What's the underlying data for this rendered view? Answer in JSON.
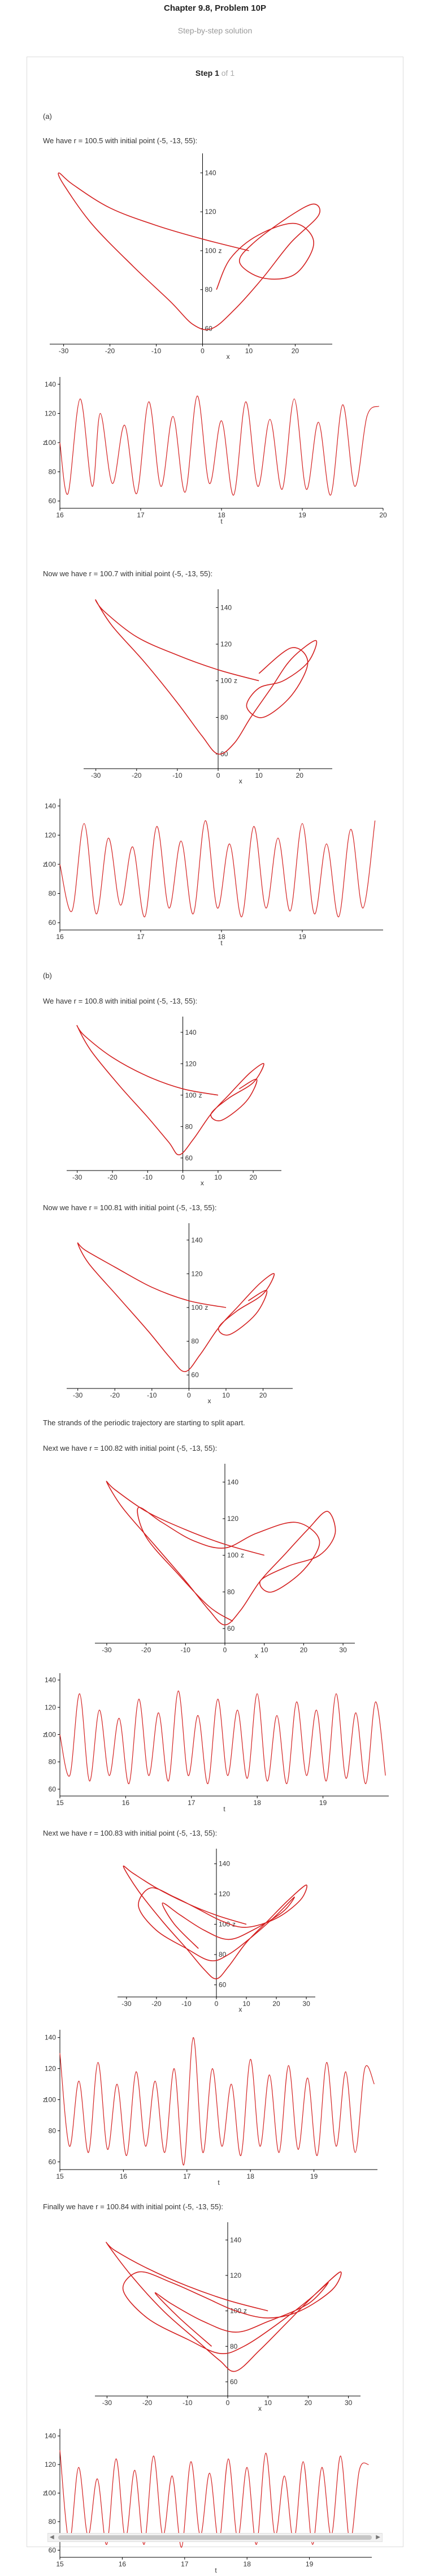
{
  "header": {
    "title": "Chapter 9.8, Problem 10P",
    "subtitle": "Step-by-step solution"
  },
  "step": {
    "label": "Step 1",
    "of": "of 1"
  },
  "paragraphs": {
    "p_a": "(a)",
    "p_1005": "We have r = 100.5 with initial point (-5, -13, 55):",
    "p_1007": "Now we have r = 100.7 with initial point (-5, -13, 55):",
    "p_b": "(b)",
    "p_1008": "We have r = 100.8 with initial point (-5, -13, 55):",
    "p_10081": "Now we have r = 100.81 with initial point (-5, -13, 55):",
    "p_split": "The strands of the periodic trajectory are starting to split apart.",
    "p_10082": "Next we have r = 100.82 with initial point (-5, -13, 55):",
    "p_10083": "Next we have r = 100.83 with initial point (-5, -13, 55):",
    "p_10084": "Finally we have r = 100.84 with initial point (-5, -13, 55):"
  },
  "colors": {
    "curve": "#d42020",
    "curve_light": "#e88080",
    "axis": "#000000"
  },
  "chart_data": [
    {
      "id": "phase_1005",
      "type": "line",
      "xlabel": "x",
      "ylabel": "z",
      "xlim": [
        -33,
        28
      ],
      "ylim": [
        52,
        150
      ],
      "xticks": [
        "-30",
        "-20",
        "-10",
        "0",
        "10",
        "20"
      ],
      "yticks": [
        "60",
        "80",
        "100",
        "120",
        "140"
      ],
      "x": [
        10,
        0,
        -10,
        -20,
        -28,
        -31,
        -30,
        -24,
        -15,
        -7,
        -2,
        2,
        7,
        13,
        19,
        25,
        24,
        19,
        11,
        8,
        13,
        20,
        24,
        20,
        12,
        6,
        3
      ],
      "y": [
        100,
        106,
        113,
        122,
        134,
        140,
        134,
        114,
        92,
        74,
        62,
        60,
        70,
        86,
        104,
        118,
        124,
        118,
        104,
        94,
        86,
        88,
        104,
        114,
        108,
        96,
        80
      ]
    },
    {
      "id": "time_1005",
      "type": "line",
      "xlabel": "t",
      "ylabel": "z",
      "xlim": [
        16,
        20
      ],
      "ylim": [
        55,
        145
      ],
      "xticks": [
        "16",
        "17",
        "18",
        "19",
        "20"
      ],
      "yticks": [
        "60",
        "80",
        "100",
        "120",
        "140"
      ],
      "x": [
        16.0,
        16.1,
        16.25,
        16.4,
        16.5,
        16.65,
        16.8,
        16.95,
        17.1,
        17.25,
        17.4,
        17.55,
        17.7,
        17.85,
        18.0,
        18.15,
        18.3,
        18.45,
        18.6,
        18.75,
        18.9,
        19.05,
        19.2,
        19.35,
        19.5,
        19.65,
        19.8,
        19.95
      ],
      "y": [
        100,
        65,
        130,
        70,
        120,
        72,
        112,
        65,
        128,
        70,
        118,
        66,
        132,
        72,
        115,
        64,
        128,
        70,
        116,
        68,
        130,
        68,
        114,
        64,
        126,
        70,
        118,
        125
      ]
    },
    {
      "id": "phase_1007",
      "type": "line",
      "xlabel": "x",
      "ylabel": "z",
      "xlim": [
        -33,
        28
      ],
      "ylim": [
        52,
        150
      ],
      "xticks": [
        "-30",
        "-20",
        "-10",
        "0",
        "10",
        "20"
      ],
      "yticks": [
        "60",
        "80",
        "100",
        "120",
        "140"
      ],
      "x": [
        10,
        0,
        -10,
        -20,
        -28,
        -30,
        -26,
        -18,
        -10,
        -4,
        0,
        4,
        8,
        13,
        18,
        24,
        22,
        16,
        10,
        7,
        11,
        18,
        22,
        18,
        10
      ],
      "y": [
        100,
        106,
        114,
        124,
        138,
        144,
        130,
        110,
        88,
        70,
        60,
        66,
        80,
        96,
        112,
        122,
        110,
        100,
        96,
        86,
        80,
        92,
        110,
        118,
        104
      ]
    },
    {
      "id": "time_1007",
      "type": "line",
      "xlabel": "t",
      "ylabel": "z",
      "xlim": [
        16,
        20
      ],
      "ylim": [
        55,
        145
      ],
      "xticks": [
        "16",
        "17",
        "18",
        "19"
      ],
      "yticks": [
        "60",
        "80",
        "100",
        "120",
        "140"
      ],
      "x": [
        16.0,
        16.15,
        16.3,
        16.45,
        16.6,
        16.75,
        16.9,
        17.05,
        17.2,
        17.35,
        17.5,
        17.65,
        17.8,
        17.95,
        18.1,
        18.25,
        18.4,
        18.55,
        18.7,
        18.85,
        19.0,
        19.15,
        19.3,
        19.45,
        19.6,
        19.75,
        19.9
      ],
      "y": [
        100,
        68,
        128,
        66,
        118,
        72,
        112,
        64,
        126,
        70,
        116,
        66,
        130,
        70,
        114,
        64,
        126,
        70,
        118,
        68,
        128,
        66,
        114,
        64,
        124,
        70,
        130
      ]
    },
    {
      "id": "phase_1008",
      "type": "line",
      "xlabel": "x",
      "ylabel": "z",
      "xlim": [
        -33,
        28
      ],
      "ylim": [
        52,
        150
      ],
      "xticks": [
        "-30",
        "-20",
        "-10",
        "0",
        "10",
        "20"
      ],
      "yticks": [
        "60",
        "80",
        "100",
        "120",
        "140"
      ],
      "x": [
        10,
        0,
        -10,
        -20,
        -28,
        -30,
        -26,
        -18,
        -10,
        -4,
        -1,
        3,
        8,
        13,
        19,
        23,
        20,
        13,
        8,
        11,
        18,
        21,
        16
      ],
      "y": [
        100,
        104,
        112,
        124,
        138,
        144,
        128,
        106,
        86,
        70,
        62,
        72,
        88,
        100,
        114,
        120,
        108,
        98,
        88,
        84,
        96,
        110,
        104
      ]
    },
    {
      "id": "phase_10081",
      "type": "line",
      "xlabel": "x",
      "ylabel": "z",
      "xlim": [
        -33,
        28
      ],
      "ylim": [
        52,
        150
      ],
      "xticks": [
        "-30",
        "-20",
        "-10",
        "0",
        "10",
        "20"
      ],
      "yticks": [
        "60",
        "80",
        "100",
        "120",
        "140"
      ],
      "x": [
        10,
        0,
        -10,
        -20,
        -28,
        -30,
        -27,
        -19,
        -11,
        -5,
        -1,
        3,
        8,
        13,
        19,
        23,
        20,
        13,
        8,
        11,
        18,
        21,
        16
      ],
      "y": [
        100,
        104,
        112,
        124,
        134,
        138,
        126,
        106,
        86,
        70,
        62,
        72,
        88,
        100,
        114,
        120,
        108,
        98,
        88,
        84,
        96,
        110,
        104
      ]
    },
    {
      "id": "phase_10082",
      "type": "line",
      "xlabel": "x",
      "ylabel": "z",
      "xlim": [
        -33,
        33
      ],
      "ylim": [
        52,
        150
      ],
      "xticks": [
        "-30",
        "-20",
        "-10",
        "0",
        "10",
        "20",
        "30"
      ],
      "yticks": [
        "60",
        "80",
        "100",
        "120",
        "140"
      ],
      "x": [
        10,
        0,
        -10,
        -20,
        -28,
        -30,
        -26,
        -18,
        -10,
        -4,
        0,
        4,
        9,
        15,
        21,
        26,
        28,
        24,
        16,
        9,
        12,
        20,
        24,
        18,
        8,
        0,
        -8,
        -16,
        -22,
        -20,
        -12,
        -4,
        2
      ],
      "y": [
        100,
        106,
        114,
        124,
        136,
        140,
        126,
        106,
        86,
        70,
        62,
        70,
        86,
        100,
        114,
        124,
        112,
        100,
        94,
        86,
        80,
        92,
        108,
        118,
        112,
        104,
        108,
        118,
        126,
        110,
        90,
        72,
        64
      ]
    },
    {
      "id": "time_10082",
      "type": "line",
      "xlabel": "t",
      "ylabel": "z",
      "xlim": [
        15,
        20
      ],
      "ylim": [
        55,
        145
      ],
      "xticks": [
        "15",
        "16",
        "17",
        "18",
        "19"
      ],
      "yticks": [
        "60",
        "80",
        "100",
        "120",
        "140"
      ],
      "x": [
        15.0,
        15.15,
        15.3,
        15.45,
        15.6,
        15.75,
        15.9,
        16.05,
        16.2,
        16.35,
        16.5,
        16.65,
        16.8,
        16.95,
        17.1,
        17.25,
        17.4,
        17.55,
        17.7,
        17.85,
        18.0,
        18.15,
        18.3,
        18.45,
        18.6,
        18.75,
        18.9,
        19.05,
        19.2,
        19.35,
        19.5,
        19.65,
        19.8,
        19.95
      ],
      "y": [
        100,
        70,
        130,
        66,
        118,
        70,
        112,
        64,
        126,
        70,
        116,
        66,
        132,
        70,
        114,
        64,
        126,
        70,
        118,
        68,
        130,
        66,
        114,
        64,
        124,
        70,
        118,
        66,
        130,
        68,
        116,
        64,
        124,
        70
      ]
    },
    {
      "id": "phase_10083",
      "type": "line",
      "xlabel": "x",
      "ylabel": "z",
      "xlim": [
        -33,
        33
      ],
      "ylim": [
        52,
        150
      ],
      "xticks": [
        "-30",
        "-20",
        "-10",
        "0",
        "10",
        "20",
        "30"
      ],
      "yticks": [
        "60",
        "80",
        "100",
        "120",
        "140"
      ],
      "x": [
        10,
        0,
        -10,
        -20,
        -28,
        -31,
        -26,
        -18,
        -10,
        -4,
        0,
        4,
        10,
        17,
        24,
        30,
        28,
        20,
        10,
        2,
        -6,
        -14,
        -22,
        -26,
        -20,
        -10,
        -2,
        4,
        12,
        20,
        26,
        22,
        12,
        4,
        -4,
        -12,
        -18,
        -14,
        -6
      ],
      "y": [
        100,
        106,
        114,
        124,
        134,
        138,
        122,
        102,
        84,
        70,
        64,
        72,
        88,
        102,
        116,
        126,
        116,
        104,
        98,
        102,
        110,
        118,
        124,
        112,
        96,
        84,
        76,
        80,
        92,
        106,
        118,
        108,
        96,
        90,
        96,
        106,
        114,
        100,
        84
      ]
    },
    {
      "id": "time_10083",
      "type": "line",
      "xlabel": "t",
      "ylabel": "z",
      "xlim": [
        15,
        20
      ],
      "ylim": [
        55,
        145
      ],
      "xticks": [
        "15",
        "16",
        "17",
        "18",
        "19"
      ],
      "yticks": [
        "60",
        "80",
        "100",
        "120",
        "140"
      ],
      "x": [
        15.0,
        15.15,
        15.3,
        15.45,
        15.6,
        15.75,
        15.9,
        16.05,
        16.2,
        16.35,
        16.5,
        16.65,
        16.8,
        16.95,
        17.1,
        17.25,
        17.4,
        17.55,
        17.7,
        17.85,
        18.0,
        18.15,
        18.3,
        18.45,
        18.6,
        18.75,
        18.9,
        19.05,
        19.2,
        19.35,
        19.5,
        19.65,
        19.8,
        19.95
      ],
      "y": [
        130,
        70,
        112,
        66,
        124,
        68,
        110,
        64,
        118,
        70,
        112,
        66,
        120,
        58,
        140,
        66,
        120,
        70,
        110,
        64,
        126,
        70,
        116,
        66,
        122,
        68,
        114,
        64,
        124,
        70,
        118,
        66,
        120,
        110
      ]
    },
    {
      "id": "phase_10084",
      "type": "line",
      "xlabel": "x",
      "ylabel": "z",
      "xlim": [
        -33,
        33
      ],
      "ylim": [
        52,
        150
      ],
      "xticks": [
        "-30",
        "-20",
        "-10",
        "0",
        "10",
        "20",
        "30"
      ],
      "yticks": [
        "60",
        "80",
        "100",
        "120",
        "140"
      ],
      "x": [
        10,
        0,
        -10,
        -20,
        -28,
        -30,
        -24,
        -16,
        -8,
        -2,
        2,
        8,
        15,
        22,
        28,
        26,
        18,
        10,
        2,
        -6,
        -14,
        -22,
        -26,
        -20,
        -10,
        -2,
        4,
        12,
        20,
        25,
        20,
        10,
        2,
        -6,
        -14,
        -18,
        -12,
        -4
      ],
      "y": [
        100,
        106,
        114,
        124,
        134,
        138,
        120,
        100,
        84,
        72,
        66,
        78,
        94,
        110,
        122,
        112,
        100,
        96,
        100,
        108,
        116,
        122,
        112,
        96,
        84,
        76,
        80,
        92,
        106,
        116,
        104,
        94,
        88,
        94,
        104,
        110,
        96,
        80
      ]
    },
    {
      "id": "time_10084",
      "type": "line",
      "xlabel": "t",
      "ylabel": "z",
      "xlim": [
        15,
        20
      ],
      "ylim": [
        55,
        145
      ],
      "xticks": [
        "15",
        "16",
        "17",
        "18",
        "19"
      ],
      "yticks": [
        "60",
        "80",
        "100",
        "120",
        "140"
      ],
      "x": [
        15.0,
        15.15,
        15.3,
        15.45,
        15.6,
        15.75,
        15.9,
        16.05,
        16.2,
        16.35,
        16.5,
        16.65,
        16.8,
        16.95,
        17.1,
        17.25,
        17.4,
        17.55,
        17.7,
        17.85,
        18.0,
        18.15,
        18.3,
        18.45,
        18.6,
        18.75,
        18.9,
        19.05,
        19.2,
        19.35,
        19.5,
        19.65,
        19.8,
        19.95
      ],
      "y": [
        130,
        66,
        118,
        70,
        110,
        64,
        124,
        68,
        116,
        64,
        126,
        70,
        112,
        62,
        122,
        70,
        114,
        66,
        124,
        68,
        118,
        64,
        128,
        70,
        112,
        66,
        122,
        64,
        118,
        70,
        126,
        66,
        116,
        120
      ]
    }
  ]
}
